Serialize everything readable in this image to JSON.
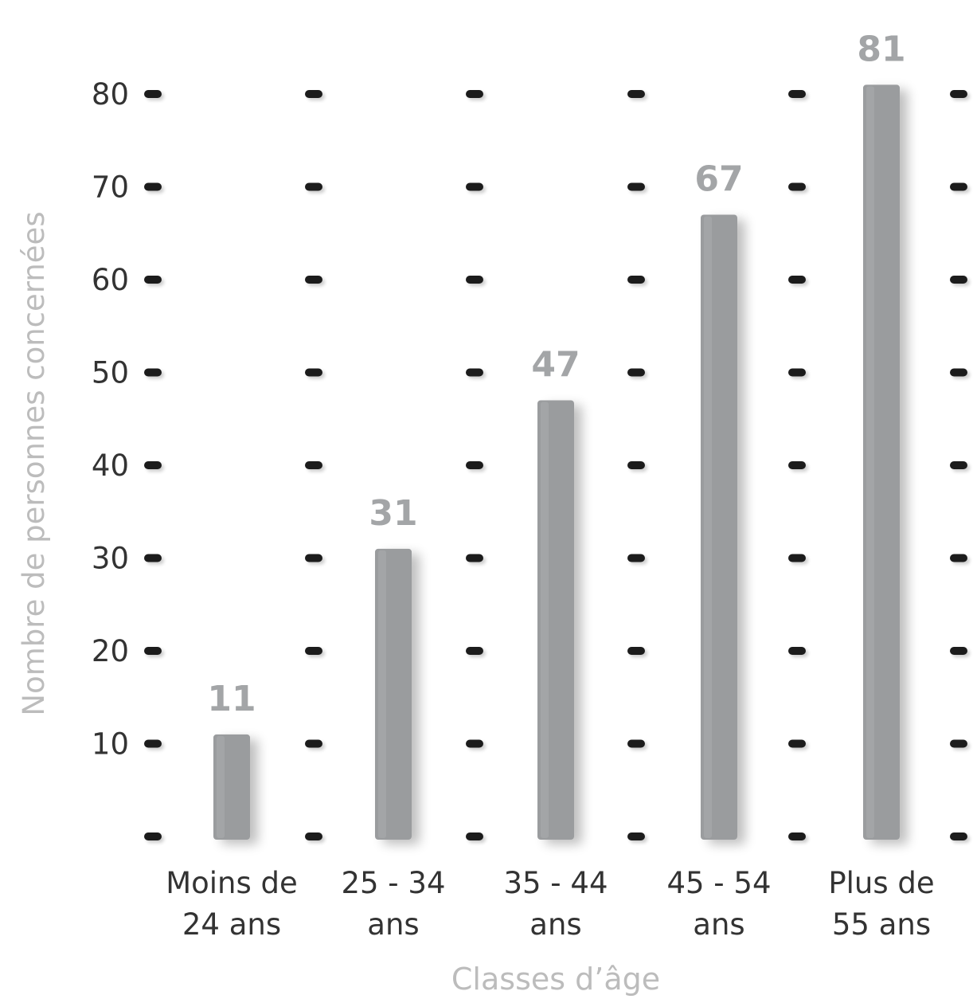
{
  "chart_data": {
    "type": "bar",
    "xlabel": "Classes d’âge",
    "ylabel": "Nombre de personnes  concernées",
    "categories": [
      [
        "Moins de",
        "24 ans"
      ],
      [
        "25 - 34",
        "ans"
      ],
      [
        "35 - 44",
        "ans"
      ],
      [
        "45 - 54",
        "ans"
      ],
      [
        "Plus de",
        "55 ans"
      ]
    ],
    "values": [
      11,
      31,
      47,
      67,
      81
    ],
    "data_labels": [
      "11",
      "31",
      "47",
      "67",
      "81"
    ],
    "yticks": [
      10,
      20,
      30,
      40,
      50,
      60,
      70,
      80
    ],
    "ylim": [
      0,
      80
    ],
    "grid": "peg dots",
    "legend": "none",
    "colors": {
      "bar": "#9a9c9e",
      "bar_highlight": "#b4b6b8",
      "value_label": "#a3a5a7",
      "axis_title": "#bcbcbc",
      "tick_label": "#333333",
      "peg": "#1e1e1e"
    }
  }
}
